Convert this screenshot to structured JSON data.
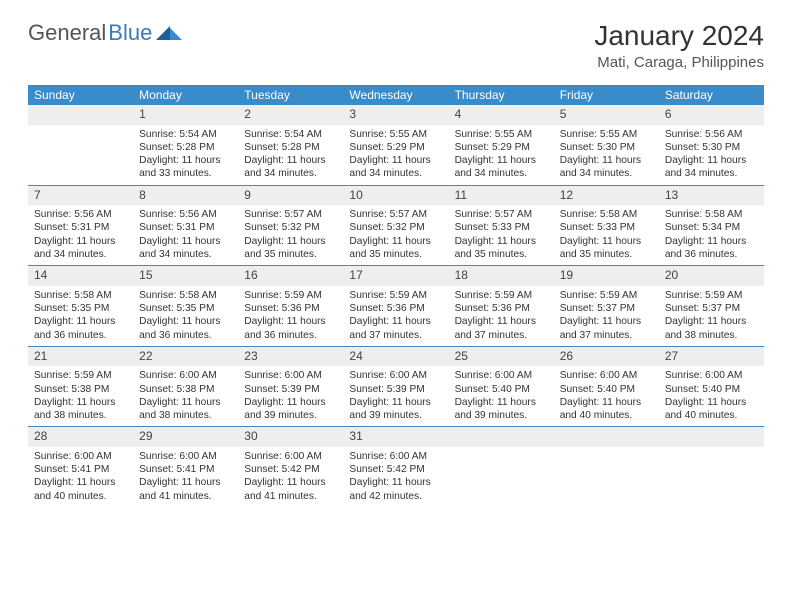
{
  "brand": {
    "part1": "General",
    "part2": "Blue"
  },
  "title": "January 2024",
  "location": "Mati, Caraga, Philippines",
  "colors": {
    "header_bg": "#3a8bc9",
    "header_text": "#ffffff",
    "daynum_bg": "#eceeef",
    "rule": "#3a8bc9",
    "brand_blue": "#3a7ab8"
  },
  "day_headers": [
    "Sunday",
    "Monday",
    "Tuesday",
    "Wednesday",
    "Thursday",
    "Friday",
    "Saturday"
  ],
  "weeks": [
    [
      {
        "day": "",
        "sunrise": "",
        "sunset": "",
        "daylight": ""
      },
      {
        "day": "1",
        "sunrise": "Sunrise: 5:54 AM",
        "sunset": "Sunset: 5:28 PM",
        "daylight": "Daylight: 11 hours and 33 minutes."
      },
      {
        "day": "2",
        "sunrise": "Sunrise: 5:54 AM",
        "sunset": "Sunset: 5:28 PM",
        "daylight": "Daylight: 11 hours and 34 minutes."
      },
      {
        "day": "3",
        "sunrise": "Sunrise: 5:55 AM",
        "sunset": "Sunset: 5:29 PM",
        "daylight": "Daylight: 11 hours and 34 minutes."
      },
      {
        "day": "4",
        "sunrise": "Sunrise: 5:55 AM",
        "sunset": "Sunset: 5:29 PM",
        "daylight": "Daylight: 11 hours and 34 minutes."
      },
      {
        "day": "5",
        "sunrise": "Sunrise: 5:55 AM",
        "sunset": "Sunset: 5:30 PM",
        "daylight": "Daylight: 11 hours and 34 minutes."
      },
      {
        "day": "6",
        "sunrise": "Sunrise: 5:56 AM",
        "sunset": "Sunset: 5:30 PM",
        "daylight": "Daylight: 11 hours and 34 minutes."
      }
    ],
    [
      {
        "day": "7",
        "sunrise": "Sunrise: 5:56 AM",
        "sunset": "Sunset: 5:31 PM",
        "daylight": "Daylight: 11 hours and 34 minutes."
      },
      {
        "day": "8",
        "sunrise": "Sunrise: 5:56 AM",
        "sunset": "Sunset: 5:31 PM",
        "daylight": "Daylight: 11 hours and 34 minutes."
      },
      {
        "day": "9",
        "sunrise": "Sunrise: 5:57 AM",
        "sunset": "Sunset: 5:32 PM",
        "daylight": "Daylight: 11 hours and 35 minutes."
      },
      {
        "day": "10",
        "sunrise": "Sunrise: 5:57 AM",
        "sunset": "Sunset: 5:32 PM",
        "daylight": "Daylight: 11 hours and 35 minutes."
      },
      {
        "day": "11",
        "sunrise": "Sunrise: 5:57 AM",
        "sunset": "Sunset: 5:33 PM",
        "daylight": "Daylight: 11 hours and 35 minutes."
      },
      {
        "day": "12",
        "sunrise": "Sunrise: 5:58 AM",
        "sunset": "Sunset: 5:33 PM",
        "daylight": "Daylight: 11 hours and 35 minutes."
      },
      {
        "day": "13",
        "sunrise": "Sunrise: 5:58 AM",
        "sunset": "Sunset: 5:34 PM",
        "daylight": "Daylight: 11 hours and 36 minutes."
      }
    ],
    [
      {
        "day": "14",
        "sunrise": "Sunrise: 5:58 AM",
        "sunset": "Sunset: 5:35 PM",
        "daylight": "Daylight: 11 hours and 36 minutes."
      },
      {
        "day": "15",
        "sunrise": "Sunrise: 5:58 AM",
        "sunset": "Sunset: 5:35 PM",
        "daylight": "Daylight: 11 hours and 36 minutes."
      },
      {
        "day": "16",
        "sunrise": "Sunrise: 5:59 AM",
        "sunset": "Sunset: 5:36 PM",
        "daylight": "Daylight: 11 hours and 36 minutes."
      },
      {
        "day": "17",
        "sunrise": "Sunrise: 5:59 AM",
        "sunset": "Sunset: 5:36 PM",
        "daylight": "Daylight: 11 hours and 37 minutes."
      },
      {
        "day": "18",
        "sunrise": "Sunrise: 5:59 AM",
        "sunset": "Sunset: 5:36 PM",
        "daylight": "Daylight: 11 hours and 37 minutes."
      },
      {
        "day": "19",
        "sunrise": "Sunrise: 5:59 AM",
        "sunset": "Sunset: 5:37 PM",
        "daylight": "Daylight: 11 hours and 37 minutes."
      },
      {
        "day": "20",
        "sunrise": "Sunrise: 5:59 AM",
        "sunset": "Sunset: 5:37 PM",
        "daylight": "Daylight: 11 hours and 38 minutes."
      }
    ],
    [
      {
        "day": "21",
        "sunrise": "Sunrise: 5:59 AM",
        "sunset": "Sunset: 5:38 PM",
        "daylight": "Daylight: 11 hours and 38 minutes."
      },
      {
        "day": "22",
        "sunrise": "Sunrise: 6:00 AM",
        "sunset": "Sunset: 5:38 PM",
        "daylight": "Daylight: 11 hours and 38 minutes."
      },
      {
        "day": "23",
        "sunrise": "Sunrise: 6:00 AM",
        "sunset": "Sunset: 5:39 PM",
        "daylight": "Daylight: 11 hours and 39 minutes."
      },
      {
        "day": "24",
        "sunrise": "Sunrise: 6:00 AM",
        "sunset": "Sunset: 5:39 PM",
        "daylight": "Daylight: 11 hours and 39 minutes."
      },
      {
        "day": "25",
        "sunrise": "Sunrise: 6:00 AM",
        "sunset": "Sunset: 5:40 PM",
        "daylight": "Daylight: 11 hours and 39 minutes."
      },
      {
        "day": "26",
        "sunrise": "Sunrise: 6:00 AM",
        "sunset": "Sunset: 5:40 PM",
        "daylight": "Daylight: 11 hours and 40 minutes."
      },
      {
        "day": "27",
        "sunrise": "Sunrise: 6:00 AM",
        "sunset": "Sunset: 5:40 PM",
        "daylight": "Daylight: 11 hours and 40 minutes."
      }
    ],
    [
      {
        "day": "28",
        "sunrise": "Sunrise: 6:00 AM",
        "sunset": "Sunset: 5:41 PM",
        "daylight": "Daylight: 11 hours and 40 minutes."
      },
      {
        "day": "29",
        "sunrise": "Sunrise: 6:00 AM",
        "sunset": "Sunset: 5:41 PM",
        "daylight": "Daylight: 11 hours and 41 minutes."
      },
      {
        "day": "30",
        "sunrise": "Sunrise: 6:00 AM",
        "sunset": "Sunset: 5:42 PM",
        "daylight": "Daylight: 11 hours and 41 minutes."
      },
      {
        "day": "31",
        "sunrise": "Sunrise: 6:00 AM",
        "sunset": "Sunset: 5:42 PM",
        "daylight": "Daylight: 11 hours and 42 minutes."
      },
      {
        "day": "",
        "sunrise": "",
        "sunset": "",
        "daylight": ""
      },
      {
        "day": "",
        "sunrise": "",
        "sunset": "",
        "daylight": ""
      },
      {
        "day": "",
        "sunrise": "",
        "sunset": "",
        "daylight": ""
      }
    ]
  ]
}
